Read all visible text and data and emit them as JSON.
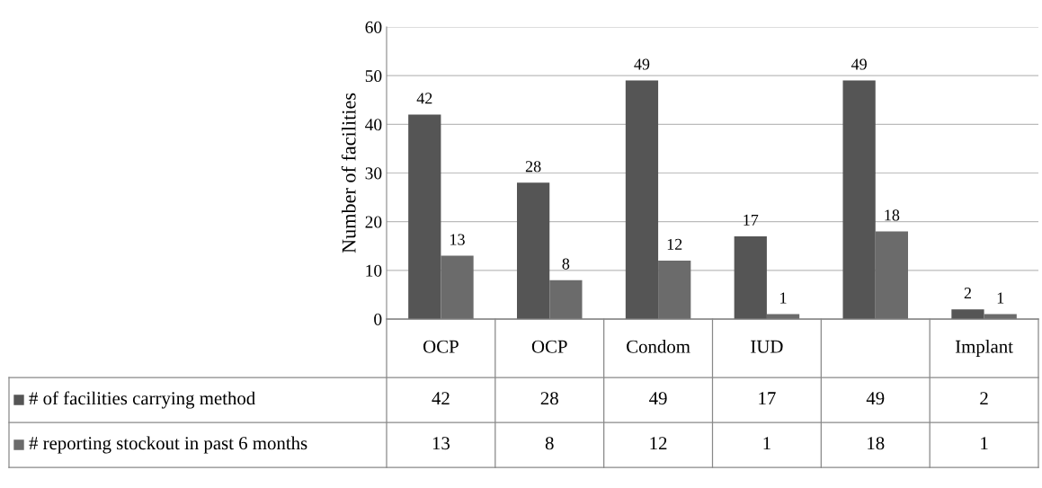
{
  "chart_data": {
    "type": "bar",
    "ylabel": "Number of facilities",
    "categories": [
      "OCP",
      "OCP",
      "Condom",
      "IUD",
      null,
      "Implant"
    ],
    "series": [
      {
        "name": "# of facilities carrying method",
        "color": "#555555",
        "values": [
          42,
          28,
          49,
          17,
          49,
          2
        ],
        "value_labels": [
          "42",
          "28",
          "49",
          "17",
          "49",
          "2"
        ]
      },
      {
        "name": "# reporting stockout in past 6 months",
        "color": "#6b6b6b",
        "values": [
          13,
          8,
          12,
          1,
          18,
          1
        ],
        "value_labels": [
          "13",
          "8",
          "12",
          "1",
          "18",
          "1"
        ]
      }
    ],
    "ylim": [
      0,
      60
    ],
    "yticks": [
      0,
      10,
      20,
      30,
      40,
      50,
      60
    ],
    "grid": "y",
    "legend": "bottom left",
    "annotations": [
      "42",
      "28",
      "49",
      "17",
      "49",
      "2",
      "13",
      "8",
      "12",
      "1",
      "18",
      "1"
    ]
  }
}
